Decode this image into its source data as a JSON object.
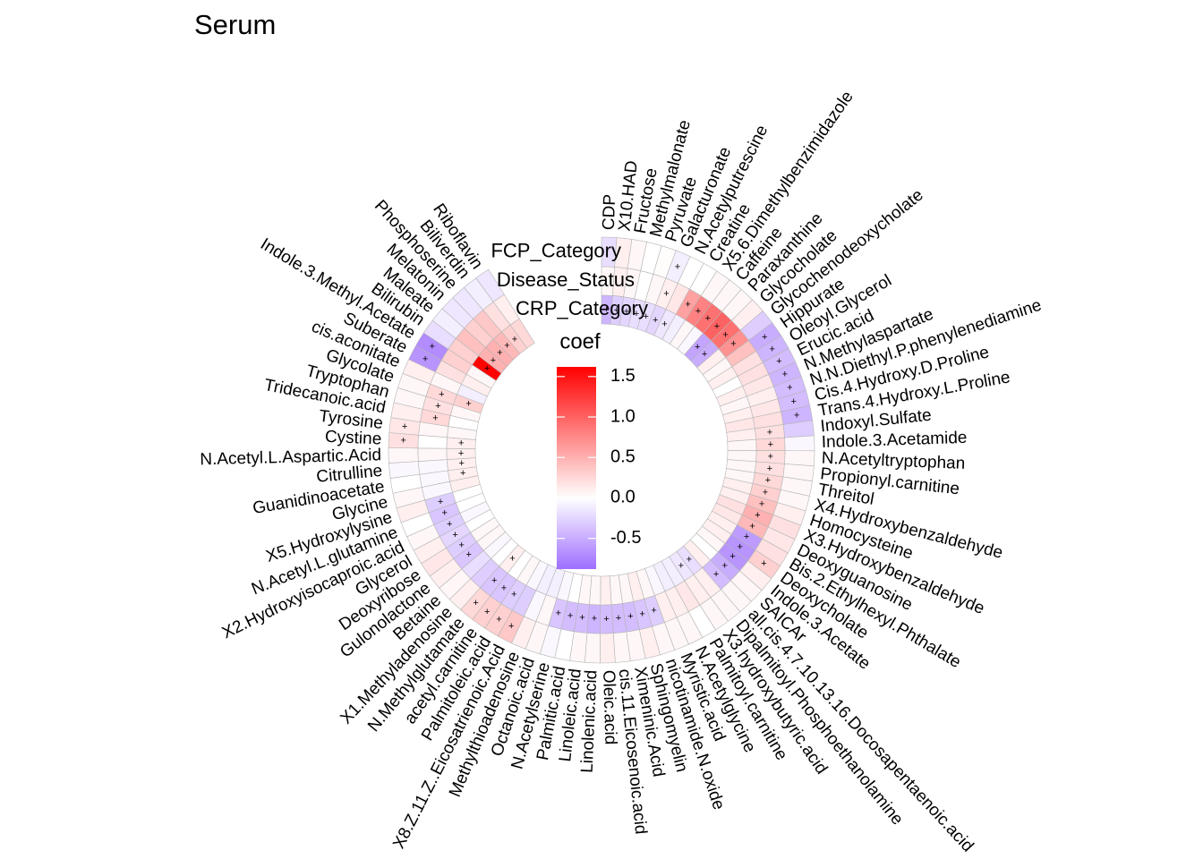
{
  "chart_data": {
    "type": "circular_heatmap",
    "title": "Serum",
    "legend_title": "coef",
    "clim": [
      -0.88,
      1.62
    ],
    "colors": [
      "#9f6eff",
      "#ffffff",
      "#ff0000"
    ],
    "cticks": [
      -0.5,
      {
        "value": 0,
        "label": "0.0"
      },
      0.5,
      {
        "value": 1,
        "label": "1.0"
      },
      1.5
    ],
    "categories": [
      "CDP",
      "X10.HAD",
      "Fructose",
      "Methylmalonate",
      "Pyruvate",
      "Galacturonate",
      "N.Acetylputrescine",
      "Creatine",
      "X5.6.Dimethylbenzimidazole",
      "Caffeine",
      "Paraxanthine",
      "Glycocholate",
      "Glycochenodeoxycholate",
      "Hippurate",
      "Oleoyl.Glycerol",
      "Erucic.acid",
      "N.Methylaspartate",
      "N.N.Diethyl.P.phenylenediamine",
      "Cis.4.Hydroxy.D.Proline",
      "Trans.4.Hydroxy.L.Proline",
      "Indoxyl.Sulfate",
      "Indole.3.Acetamide",
      "N.Acetyltryptophan",
      "Propionyl.carnitine",
      "Threitol",
      "X4.Hydroxybenzaldehyde",
      "Homocysteine",
      "X3.Hydroxybenzaldehyde",
      "Deoxyguanosine",
      "Bis.2.Ethylhexyl.Phthalate",
      "Deoxycholate",
      "Indole.3.Acetate",
      "SAICAr",
      "all.cis.4.7.10.13.16.Docosapentaenoic.acid",
      "Dipalmitoyl.Phosphoethanolamine",
      "X3.hydroxybutyric.acid",
      "Palmitoyl.carnitine",
      "N.Acetylglycine",
      "Myristic.acid",
      "nicotinamide.N.oxide",
      "Sphingomyelin",
      "Ximeninic.Acid",
      "cis.11.Eicosenoic.acid",
      "Oleic.acid",
      "Linolenic.acid",
      "Linoleic.acid",
      "Palmitic.acid",
      "N.Acetylserine",
      "Octanoic.acid",
      "Methylthioadenosine",
      "X8.Z.11.Z..Eicosatrienoic.Acid",
      "Palmitoleic.acid",
      "acetyl.carnitine",
      "N.Methylglutamate",
      "X1.Methyladenosine",
      "Betaine",
      "Gulonolactone",
      "Deoxyribose",
      "Glycerol",
      "X2.Hydroxyisocaproic.acid",
      "N.Acetyl.L.glutamine",
      "X5.Hydroxylysine",
      "Glycine",
      "Guanidinoacetate",
      "Citrulline",
      "N.Acetyl.L.Aspartic.Acid",
      "Cystine",
      "Tyrosine",
      "Tridecanoic.acid",
      "Tryptophan",
      "Glycolate",
      "cis.aconitate",
      "Suberate",
      "Indole.3.Methyl.Acetate",
      "Bilirubin",
      "Maleate",
      "Melatonin",
      "Phosphoserine",
      "Biliverdin",
      "Riboflavin"
    ],
    "series": [
      {
        "name": "FCP_Category",
        "values": [
          -0.2,
          0.1,
          0.05,
          0,
          0.02,
          -0.1,
          0,
          0,
          0.05,
          0.05,
          0.05,
          0.1,
          -0.3,
          -0.5,
          -0.45,
          -0.4,
          -0.45,
          -0.4,
          -0.4,
          -0.45,
          -0.3,
          -0.05,
          0.05,
          0.05,
          0.05,
          0.05,
          0.1,
          0.2,
          0.15,
          0.2,
          0.3,
          0.1,
          0.05,
          0.05,
          0.05,
          0.05,
          0,
          0.05,
          0.05,
          0.05,
          0.1,
          0.05,
          0.05,
          0.1,
          0.05,
          0.05,
          0,
          -0.05,
          0.05,
          0.1,
          0.35,
          0.3,
          0.3,
          0.25,
          0.1,
          0.05,
          0.1,
          0.15,
          0.1,
          0.05,
          0,
          0.1,
          0.05,
          0,
          -0.05,
          0.05,
          0.2,
          0.15,
          0.1,
          0.05,
          0.05,
          0.1,
          -0.65,
          -0.7,
          -0.2,
          -0.1,
          -0.15,
          -0.15,
          -0.1,
          -0.15
        ],
        "marks": [
          null,
          null,
          null,
          null,
          null,
          "+",
          null,
          null,
          null,
          null,
          null,
          null,
          null,
          "+",
          "+",
          "+",
          "+",
          "+",
          "+",
          "+",
          null,
          null,
          null,
          null,
          null,
          null,
          null,
          null,
          null,
          null,
          "+",
          null,
          null,
          null,
          null,
          null,
          null,
          null,
          null,
          null,
          null,
          null,
          null,
          null,
          null,
          null,
          null,
          null,
          null,
          null,
          "+",
          "+",
          "+",
          "+",
          null,
          null,
          null,
          null,
          null,
          null,
          null,
          null,
          null,
          null,
          null,
          null,
          "+",
          "+",
          null,
          null,
          null,
          null,
          "+",
          "+",
          null,
          null,
          null,
          null,
          null,
          null
        ]
      },
      {
        "name": "Disease_Status",
        "values": [
          0.05,
          0.1,
          0.05,
          0,
          0.05,
          0.1,
          0.15,
          0.6,
          0.8,
          0.9,
          1.0,
          0.9,
          0.7,
          0.4,
          0.2,
          0.2,
          0.15,
          0.1,
          0.15,
          0.2,
          0.2,
          0.25,
          0.2,
          0.2,
          0.25,
          0.3,
          0.4,
          0.5,
          0.45,
          -0.6,
          -0.65,
          -0.65,
          -0.5,
          -0.4,
          0.1,
          0.1,
          0.15,
          0.1,
          0.1,
          -0.3,
          -0.35,
          -0.4,
          -0.4,
          -0.4,
          -0.45,
          -0.4,
          -0.4,
          -0.35,
          0.05,
          -0.05,
          -0.3,
          -0.3,
          -0.35,
          -0.35,
          -0.3,
          -0.2,
          -0.35,
          -0.3,
          -0.25,
          -0.3,
          -0.35,
          -0.3,
          -0.05,
          -0.05,
          -0.05,
          0.05,
          0,
          0.05,
          0.25,
          0.2,
          0.25,
          0.05,
          0.2,
          0.3,
          0.3,
          0.4,
          0.3,
          0.35,
          0.2,
          0.1
        ],
        "marks": [
          null,
          null,
          null,
          null,
          null,
          "+",
          null,
          "+",
          "+",
          "+",
          "+",
          "+",
          "+",
          null,
          null,
          null,
          null,
          null,
          null,
          null,
          "+",
          "+",
          "+",
          "+",
          "+",
          "+",
          "+",
          "+",
          "+",
          "+",
          "+",
          "+",
          "+",
          "+",
          null,
          null,
          null,
          null,
          null,
          "+",
          "+",
          "+",
          "+",
          "+",
          "+",
          "+",
          "+",
          "+",
          null,
          null,
          null,
          "+",
          "+",
          "+",
          null,
          null,
          "+",
          "+",
          "+",
          "+",
          "+",
          "+",
          null,
          null,
          null,
          null,
          null,
          null,
          "+",
          "+",
          "+",
          null,
          null,
          null,
          null,
          null,
          null,
          null,
          null,
          null
        ]
      },
      {
        "name": "CRP_Category",
        "values": [
          -0.45,
          -0.3,
          -0.25,
          -0.2,
          -0.2,
          -0.25,
          -0.15,
          -0.1,
          0.05,
          -0.05,
          -0.55,
          -0.5,
          0.1,
          0.05,
          0.1,
          0,
          0.1,
          0.05,
          0.1,
          0.15,
          0.1,
          0.05,
          0.05,
          0.05,
          0.05,
          0.1,
          0.1,
          0.2,
          0.15,
          0.1,
          0.1,
          0.05,
          0,
          0.1,
          -0.2,
          -0.15,
          -0.1,
          -0.1,
          -0.05,
          0.05,
          0.1,
          0.05,
          0.05,
          0.1,
          0.05,
          0.05,
          0,
          -0.05,
          -0.1,
          -0.1,
          -0.05,
          0.05,
          0,
          0.1,
          0,
          -0.05,
          0.05,
          0.05,
          0,
          -0.05,
          0,
          0,
          0.1,
          0.1,
          0.1,
          0.1,
          0.1,
          0.05,
          0,
          0.05,
          0.3,
          -0.1,
          0.1,
          0.05,
          1.6,
          0.5,
          0.5,
          0.45,
          0.3,
          0.25
        ],
        "marks": [
          "+",
          "+",
          "+",
          "+",
          "+",
          "+",
          "+",
          null,
          null,
          null,
          "+",
          "+",
          null,
          null,
          null,
          null,
          null,
          null,
          null,
          null,
          null,
          null,
          null,
          null,
          null,
          null,
          null,
          null,
          null,
          null,
          null,
          null,
          null,
          null,
          "+",
          "+",
          null,
          null,
          null,
          null,
          null,
          null,
          null,
          null,
          null,
          null,
          null,
          null,
          null,
          null,
          null,
          null,
          null,
          "+",
          null,
          null,
          null,
          null,
          null,
          null,
          null,
          null,
          null,
          "+",
          "+",
          "+",
          "+",
          null,
          null,
          null,
          "+",
          null,
          null,
          null,
          "+",
          "+",
          "+",
          "+",
          "+",
          null
        ]
      }
    ]
  }
}
